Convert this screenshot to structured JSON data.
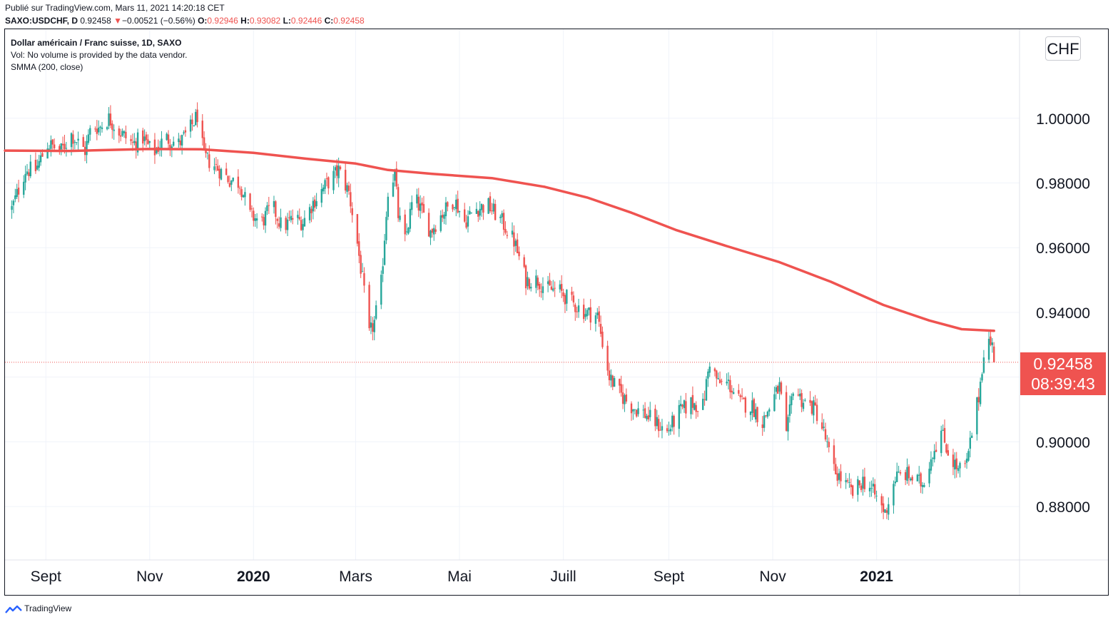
{
  "header": {
    "published": "Publié sur TradingView.com, Mars 11, 2021 14:20:18 CET",
    "symbol": "SAXO:USDCHF, D",
    "last": "0.92458",
    "change_arrow": "▼",
    "change": "−0.00521 (−0.56%)",
    "open_label": "O:",
    "open": "0.92946",
    "high_label": "H:",
    "high": "0.93082",
    "low_label": "L:",
    "low": "0.92446",
    "close_label": "C:",
    "close": "0.92458"
  },
  "legend": {
    "title": "Dollar américain / Franc suisse, 1D, SAXO",
    "volume_note": "Vol: No volume is provided by the data vendor.",
    "indicator": "SMMA (200, close)"
  },
  "currency": "CHF",
  "price_tag": {
    "price": "0.92458",
    "countdown": "08:39:43"
  },
  "footer": {
    "brand": "TradingView"
  },
  "colors": {
    "up": "#26a69a",
    "down": "#ef5350",
    "smma": "#ef5350",
    "grid": "#f0f3fa",
    "text": "#131722"
  },
  "chart_data": {
    "type": "candlestick",
    "title": "Dollar américain / Franc suisse, 1D, SAXO",
    "x_ticks": [
      {
        "label": "Sept",
        "date": "2019-09-01",
        "bold": false
      },
      {
        "label": "Nov",
        "date": "2019-11-01",
        "bold": false
      },
      {
        "label": "2020",
        "date": "2020-01-01",
        "bold": true
      },
      {
        "label": "Mars",
        "date": "2020-03-01",
        "bold": false
      },
      {
        "label": "Mai",
        "date": "2020-05-01",
        "bold": false
      },
      {
        "label": "Juill",
        "date": "2020-07-01",
        "bold": false
      },
      {
        "label": "Sept",
        "date": "2020-09-01",
        "bold": false
      },
      {
        "label": "Nov",
        "date": "2020-11-01",
        "bold": false
      },
      {
        "label": "2021",
        "date": "2021-01-01",
        "bold": true
      }
    ],
    "x_range": [
      "2019-08-08",
      "2021-03-26"
    ],
    "y_ticks": [
      "1.00000",
      "0.98000",
      "0.96000",
      "0.94000",
      "0.90000",
      "0.88000"
    ],
    "y_range": [
      0.8635,
      1.0275
    ],
    "grid": true,
    "last_price": 0.92458,
    "series": [
      {
        "name": "USDCHF",
        "kind": "candles",
        "close_path": [
          [
            "2019-08-12",
            0.972
          ],
          [
            "2019-08-20",
            0.984
          ],
          [
            "2019-08-26",
            0.984
          ],
          [
            "2019-09-02",
            0.992
          ],
          [
            "2019-09-10",
            0.99
          ],
          [
            "2019-09-16",
            0.995
          ],
          [
            "2019-09-24",
            0.99
          ],
          [
            "2019-09-28",
            0.998
          ],
          [
            "2019-10-02",
            0.997
          ],
          [
            "2019-10-08",
            1.0
          ],
          [
            "2019-10-14",
            0.996
          ],
          [
            "2019-10-22",
            0.992
          ],
          [
            "2019-10-28",
            0.994
          ],
          [
            "2019-11-03",
            0.989
          ],
          [
            "2019-11-10",
            0.994
          ],
          [
            "2019-11-18",
            0.992
          ],
          [
            "2019-11-24",
            0.996
          ],
          [
            "2019-11-29",
            1.001
          ],
          [
            "2019-12-03",
            0.988
          ],
          [
            "2019-12-10",
            0.985
          ],
          [
            "2019-12-18",
            0.981
          ],
          [
            "2019-12-24",
            0.98
          ],
          [
            "2019-12-30",
            0.97
          ],
          [
            "2020-01-06",
            0.968
          ],
          [
            "2020-01-12",
            0.973
          ],
          [
            "2020-01-18",
            0.966
          ],
          [
            "2020-01-24",
            0.969
          ],
          [
            "2020-01-30",
            0.968
          ],
          [
            "2020-02-05",
            0.974
          ],
          [
            "2020-02-12",
            0.979
          ],
          [
            "2020-02-20",
            0.984
          ],
          [
            "2020-02-26",
            0.977
          ],
          [
            "2020-03-01",
            0.965
          ],
          [
            "2020-03-05",
            0.95
          ],
          [
            "2020-03-09",
            0.933
          ],
          [
            "2020-03-12",
            0.937
          ],
          [
            "2020-03-16",
            0.949
          ],
          [
            "2020-03-20",
            0.978
          ],
          [
            "2020-03-24",
            0.983
          ],
          [
            "2020-03-26",
            0.97
          ],
          [
            "2020-03-30",
            0.962
          ],
          [
            "2020-04-04",
            0.976
          ],
          [
            "2020-04-09",
            0.971
          ],
          [
            "2020-04-14",
            0.965
          ],
          [
            "2020-04-20",
            0.97
          ],
          [
            "2020-04-28",
            0.975
          ],
          [
            "2020-05-04",
            0.968
          ],
          [
            "2020-05-10",
            0.972
          ],
          [
            "2020-05-18",
            0.973
          ],
          [
            "2020-05-26",
            0.968
          ],
          [
            "2020-06-02",
            0.962
          ],
          [
            "2020-06-09",
            0.95
          ],
          [
            "2020-06-16",
            0.95
          ],
          [
            "2020-06-22",
            0.947
          ],
          [
            "2020-06-28",
            0.947
          ],
          [
            "2020-07-06",
            0.943
          ],
          [
            "2020-07-14",
            0.94
          ],
          [
            "2020-07-21",
            0.939
          ],
          [
            "2020-07-28",
            0.92
          ],
          [
            "2020-08-03",
            0.915
          ],
          [
            "2020-08-10",
            0.911
          ],
          [
            "2020-08-17",
            0.909
          ],
          [
            "2020-08-24",
            0.906
          ],
          [
            "2020-08-31",
            0.903
          ],
          [
            "2020-09-07",
            0.909
          ],
          [
            "2020-09-14",
            0.912
          ],
          [
            "2020-09-21",
            0.911
          ],
          [
            "2020-09-25",
            0.925
          ],
          [
            "2020-09-30",
            0.918
          ],
          [
            "2020-10-06",
            0.918
          ],
          [
            "2020-10-13",
            0.912
          ],
          [
            "2020-10-20",
            0.911
          ],
          [
            "2020-10-26",
            0.906
          ],
          [
            "2020-11-01",
            0.913
          ],
          [
            "2020-11-05",
            0.917
          ],
          [
            "2020-11-09",
            0.901
          ],
          [
            "2020-11-13",
            0.917
          ],
          [
            "2020-11-18",
            0.913
          ],
          [
            "2020-11-26",
            0.91
          ],
          [
            "2020-12-01",
            0.903
          ],
          [
            "2020-12-06",
            0.892
          ],
          [
            "2020-12-12",
            0.888
          ],
          [
            "2020-12-18",
            0.884
          ],
          [
            "2020-12-24",
            0.888
          ],
          [
            "2020-12-28",
            0.886
          ],
          [
            "2021-01-03",
            0.881
          ],
          [
            "2021-01-06",
            0.878
          ],
          [
            "2021-01-12",
            0.889
          ],
          [
            "2021-01-18",
            0.89
          ],
          [
            "2021-01-24",
            0.888
          ],
          [
            "2021-01-28",
            0.887
          ],
          [
            "2021-02-03",
            0.897
          ],
          [
            "2021-02-08",
            0.903
          ],
          [
            "2021-02-12",
            0.897
          ],
          [
            "2021-02-18",
            0.891
          ],
          [
            "2021-02-23",
            0.893
          ],
          [
            "2021-02-27",
            0.906
          ],
          [
            "2021-03-02",
            0.914
          ],
          [
            "2021-03-05",
            0.928
          ],
          [
            "2021-03-08",
            0.931
          ],
          [
            "2021-03-10",
            0.9295
          ],
          [
            "2021-03-11",
            0.92458
          ]
        ]
      },
      {
        "name": "SMMA (200, close)",
        "kind": "line",
        "points": [
          [
            "2019-08-08",
            0.99
          ],
          [
            "2019-09-15",
            0.9899
          ],
          [
            "2019-10-31",
            0.9905
          ],
          [
            "2019-12-01",
            0.9904
          ],
          [
            "2020-01-01",
            0.9893
          ],
          [
            "2020-02-01",
            0.9875
          ],
          [
            "2020-03-01",
            0.986
          ],
          [
            "2020-03-20",
            0.984
          ],
          [
            "2020-04-15",
            0.9828
          ],
          [
            "2020-05-20",
            0.9815
          ],
          [
            "2020-06-20",
            0.9788
          ],
          [
            "2020-07-15",
            0.9755
          ],
          [
            "2020-08-10",
            0.9708
          ],
          [
            "2020-09-05",
            0.9655
          ],
          [
            "2020-10-05",
            0.9605
          ],
          [
            "2020-11-05",
            0.9555
          ],
          [
            "2020-12-05",
            0.9495
          ],
          [
            "2021-01-05",
            0.9423
          ],
          [
            "2021-02-01",
            0.9375
          ],
          [
            "2021-02-20",
            0.9348
          ],
          [
            "2021-03-11",
            0.9343
          ]
        ]
      }
    ]
  }
}
